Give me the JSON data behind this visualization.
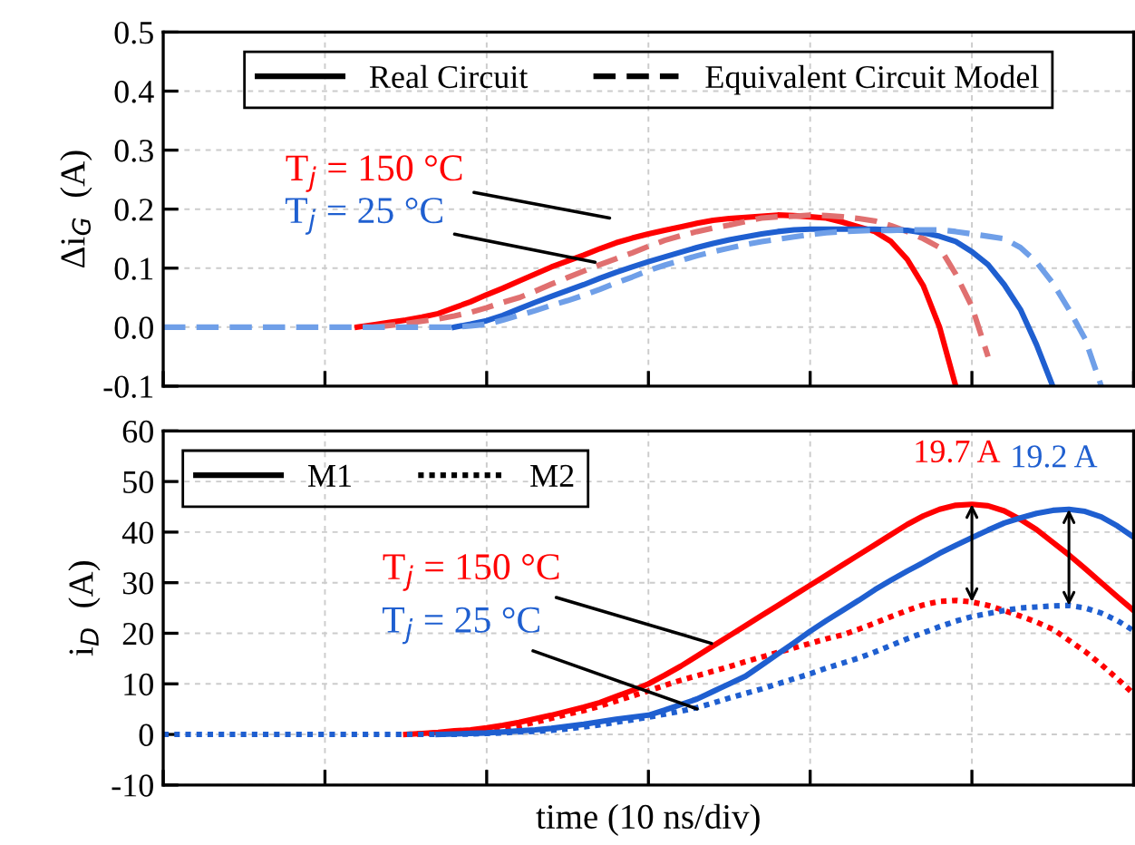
{
  "chart_data": [
    {
      "type": "line",
      "ylabel": "Δi$_{G}$  (A)",
      "ylim": [
        -0.1,
        0.5
      ],
      "categories": [
        null,
        null,
        null,
        null,
        null,
        null,
        null,
        null,
        null,
        null,
        null,
        null,
        null,
        null,
        null,
        null,
        null,
        null,
        null,
        null,
        null,
        null,
        null,
        null,
        null,
        null,
        null,
        null,
        null,
        null,
        null,
        null,
        null,
        null,
        null,
        null,
        null,
        null,
        null,
        null,
        null,
        null,
        null,
        null,
        null,
        null,
        null,
        null,
        null,
        null,
        null,
        null,
        null,
        null,
        null,
        null,
        null,
        null,
        null,
        null,
        null
      ],
      "yticks": [
        {
          "value": -0.1,
          "label": "-0.1"
        },
        {
          "value": 0,
          "label": "0.0"
        },
        0.1,
        0.2,
        0.3,
        0.4,
        0.5
      ],
      "tick_labels": "y",
      "grid": true,
      "marker": "none",
      "annotations": [
        "Real Circuit",
        "Equivalent Circuit Model",
        "T$_{j}$ = 150 °C",
        "T$_{j}$ = 25 °C"
      ],
      "series": [
        {
          "color": "#ff0000",
          "line_style": "solid",
          "values": [
            null,
            null,
            null,
            null,
            null,
            null,
            null,
            null,
            null,
            null,
            null,
            null,
            0,
            0.004,
            0.008,
            0.012,
            0.017,
            0.023,
            0.033,
            0.043,
            0.055,
            0.066,
            0.078,
            0.09,
            0.102,
            0.112,
            0.122,
            0.133,
            0.143,
            0.151,
            0.158,
            0.164,
            0.17,
            0.176,
            0.181,
            0.184,
            0.186,
            0.188,
            0.19,
            0.189,
            0.187,
            0.185,
            0.178,
            0.17,
            0.162,
            0.145,
            0.115,
            0.07,
            0.0,
            -0.1,
            null,
            null,
            null,
            null,
            null,
            null,
            null,
            null,
            null,
            null,
            null
          ]
        },
        {
          "color": "#e07070",
          "line_style": "dashed",
          "values": [
            null,
            null,
            null,
            null,
            null,
            null,
            null,
            null,
            null,
            null,
            null,
            null,
            null,
            0,
            0.003,
            0.006,
            0.01,
            0.014,
            0.019,
            0.025,
            0.033,
            0.042,
            0.05,
            0.061,
            0.073,
            0.084,
            0.095,
            0.106,
            0.116,
            0.126,
            0.137,
            0.147,
            0.155,
            0.162,
            0.168,
            0.173,
            0.179,
            0.185,
            0.187,
            0.188,
            0.19,
            0.189,
            0.187,
            0.184,
            0.18,
            0.172,
            0.162,
            0.15,
            0.135,
            0.09,
            0.035,
            -0.05,
            null,
            null,
            null,
            null,
            null,
            null,
            null,
            null,
            null
          ]
        },
        {
          "color": "#1f5fd0",
          "line_style": "solid",
          "values": [
            null,
            null,
            null,
            null,
            null,
            null,
            null,
            null,
            null,
            null,
            null,
            null,
            null,
            null,
            null,
            null,
            null,
            null,
            0,
            0.005,
            0.011,
            0.02,
            0.031,
            0.042,
            0.052,
            0.062,
            0.072,
            0.083,
            0.093,
            0.102,
            0.111,
            0.119,
            0.127,
            0.135,
            0.142,
            0.148,
            0.153,
            0.158,
            0.162,
            0.165,
            0.166,
            0.166,
            0.166,
            0.166,
            0.166,
            0.165,
            0.164,
            0.16,
            0.154,
            0.145,
            0.128,
            0.106,
            0.072,
            0.03,
            -0.03,
            -0.1,
            null,
            null,
            null,
            null,
            null
          ]
        },
        {
          "color": "#6f9fe8",
          "line_style": "dashed",
          "values": [
            0,
            0,
            0,
            0,
            0,
            0,
            0,
            0,
            0,
            0,
            0,
            0,
            0,
            0,
            0,
            0,
            0,
            0,
            0,
            0.002,
            0.005,
            0.012,
            0.02,
            0.028,
            0.037,
            0.045,
            0.054,
            0.064,
            0.075,
            0.085,
            0.096,
            0.105,
            0.113,
            0.121,
            0.128,
            0.134,
            0.14,
            0.145,
            0.149,
            0.153,
            0.157,
            0.16,
            0.162,
            0.163,
            0.164,
            0.164,
            0.165,
            0.165,
            0.165,
            0.162,
            0.158,
            0.154,
            0.15,
            0.135,
            0.11,
            0.075,
            0.03,
            -0.02,
            -0.1,
            null,
            null
          ]
        }
      ]
    },
    {
      "type": "line",
      "ylabel": "i$_{D}$  (A)",
      "xlabel": "time (10 ns/div)",
      "ylim": [
        -10,
        60
      ],
      "categories": [
        null,
        null,
        null,
        null,
        null,
        null,
        null,
        null,
        null,
        null,
        null,
        null,
        null,
        null,
        null,
        null,
        null,
        null,
        null,
        null,
        null,
        null,
        null,
        null,
        null,
        null,
        null,
        null,
        null,
        null,
        null,
        null,
        null,
        null,
        null,
        null,
        null,
        null,
        null,
        null,
        null,
        null,
        null,
        null,
        null,
        null,
        null,
        null,
        null,
        null,
        null,
        null,
        null,
        null,
        null,
        null,
        null,
        null,
        null,
        null,
        null
      ],
      "yticks": [
        -10,
        0,
        10,
        20,
        30,
        40,
        50,
        60
      ],
      "tick_labels": "y",
      "grid": true,
      "marker": "none",
      "annotations": [
        "M1",
        "M2",
        "T$_{j}$ = 150 °C",
        "T$_{j}$ = 25 °C",
        "19.7 A",
        "19.2 A"
      ],
      "series": [
        {
          "color": "#ff0000",
          "line_style": "solid",
          "values": [
            null,
            null,
            null,
            null,
            null,
            null,
            null,
            null,
            null,
            null,
            null,
            null,
            null,
            null,
            null,
            0,
            0.2,
            0.4,
            0.7,
            0.9,
            1.3,
            1.8,
            2.4,
            3.1,
            3.8,
            4.6,
            5.4,
            6.3,
            7.5,
            8.7,
            10,
            11.7,
            13.5,
            15.5,
            17.5,
            19.5,
            21.5,
            23.5,
            25.5,
            27.5,
            29.5,
            31.5,
            33.5,
            35.5,
            37.5,
            39.5,
            41.5,
            43.2,
            44.5,
            45.3,
            45.5,
            45.2,
            44.2,
            42.5,
            40.5,
            38,
            35.5,
            32.8,
            30,
            27.2,
            24.5
          ]
        },
        {
          "color": "#ff0000",
          "line_style": "dotted",
          "values": [
            null,
            null,
            null,
            null,
            null,
            null,
            null,
            null,
            null,
            null,
            null,
            null,
            null,
            null,
            null,
            0,
            0.1,
            0.3,
            0.5,
            0.7,
            0.9,
            1.2,
            1.7,
            2.4,
            3.2,
            4.0,
            4.7,
            5.6,
            6.6,
            7.6,
            8.6,
            9.7,
            10.7,
            11.6,
            12.5,
            13.4,
            14.4,
            15.3,
            16.2,
            17.1,
            18,
            18.9,
            19.7,
            20.8,
            22,
            23.3,
            24.5,
            25.6,
            26.3,
            26.5,
            26.2,
            25.5,
            24.5,
            23.4,
            22.2,
            20.8,
            18.6,
            16.4,
            13.8,
            11,
            8
          ]
        },
        {
          "color": "#1f5fd0",
          "line_style": "solid",
          "values": [
            null,
            null,
            null,
            null,
            null,
            null,
            null,
            null,
            null,
            null,
            null,
            null,
            null,
            null,
            null,
            null,
            null,
            0,
            0.1,
            0.2,
            0.3,
            0.5,
            0.7,
            0.9,
            1.2,
            1.6,
            2.0,
            2.5,
            3.0,
            3.4,
            3.8,
            4.8,
            5.9,
            7,
            8.5,
            10,
            11.5,
            13.7,
            15.9,
            18.1,
            20.4,
            22.5,
            24.5,
            26.5,
            28.6,
            30.5,
            32.3,
            34,
            35.8,
            37.4,
            38.9,
            40.4,
            41.8,
            42.8,
            43.7,
            44.3,
            44.5,
            44.1,
            43,
            41.2,
            39
          ]
        },
        {
          "color": "#1f5fd0",
          "line_style": "dotted",
          "values": [
            0,
            0,
            0,
            0,
            0,
            0,
            0,
            0,
            0,
            0,
            0,
            0,
            0,
            0,
            0,
            0,
            0,
            0,
            0,
            0.1,
            0.2,
            0.3,
            0.5,
            0.6,
            0.8,
            1.1,
            1.5,
            1.9,
            2.4,
            2.9,
            3.4,
            4.0,
            4.6,
            5.3,
            6.2,
            7.2,
            8.1,
            9.0,
            10,
            11,
            12,
            13.1,
            14.1,
            15.1,
            16.3,
            17.6,
            18.9,
            20.1,
            21.3,
            22.4,
            23.3,
            23.9,
            24.5,
            25,
            25.2,
            25.4,
            25.5,
            25,
            24,
            22.5,
            20.5
          ]
        }
      ]
    }
  ]
}
